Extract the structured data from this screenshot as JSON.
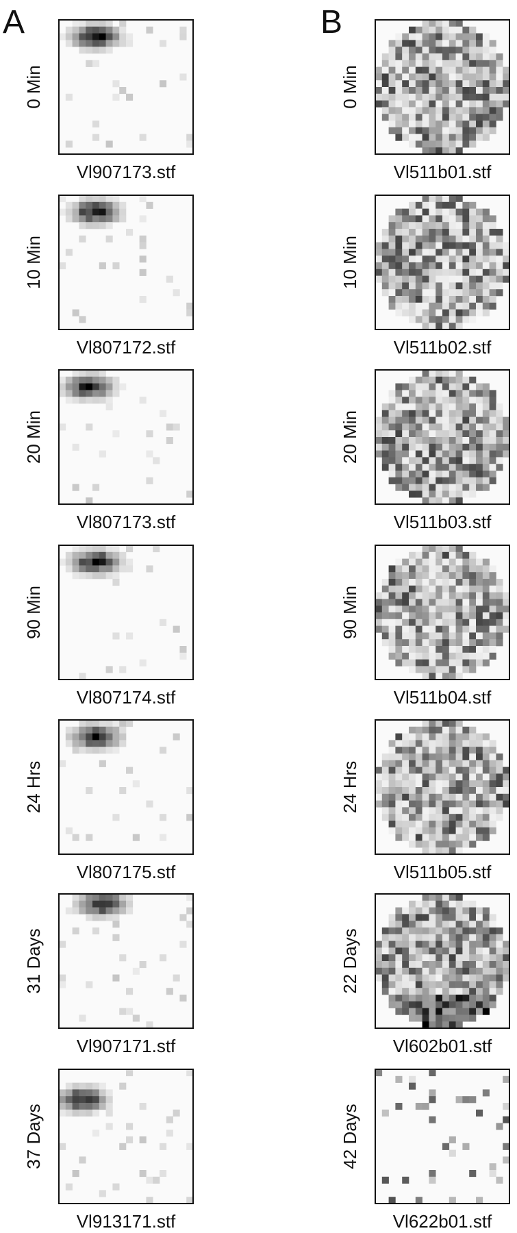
{
  "figure": {
    "panels": [
      {
        "label": "A",
        "rows": [
          {
            "time": "0 Min",
            "file": "Vl907173.stf"
          },
          {
            "time": "10 Min",
            "file": "Vl807172.stf"
          },
          {
            "time": "20 Min",
            "file": "Vl807173.stf"
          },
          {
            "time": "90 Min",
            "file": "Vl807174.stf"
          },
          {
            "time": "24 Hrs",
            "file": "Vl807175.stf"
          },
          {
            "time": "31 Days",
            "file": "Vl907171.stf"
          },
          {
            "time": "37 Days",
            "file": "Vl913171.stf"
          }
        ]
      },
      {
        "label": "B",
        "rows": [
          {
            "time": "0 Min",
            "file": "Vl511b01.stf"
          },
          {
            "time": "10 Min",
            "file": "Vl511b02.stf"
          },
          {
            "time": "20 Min",
            "file": "Vl511b03.stf"
          },
          {
            "time": "90 Min",
            "file": "Vl511b04.stf"
          },
          {
            "time": "24 Hrs",
            "file": "Vl511b05.stf"
          },
          {
            "time": "22 Days",
            "file": "Vl602b01.stf"
          },
          {
            "time": "42 Days",
            "file": "Vl622b01.stf"
          }
        ]
      }
    ]
  }
}
